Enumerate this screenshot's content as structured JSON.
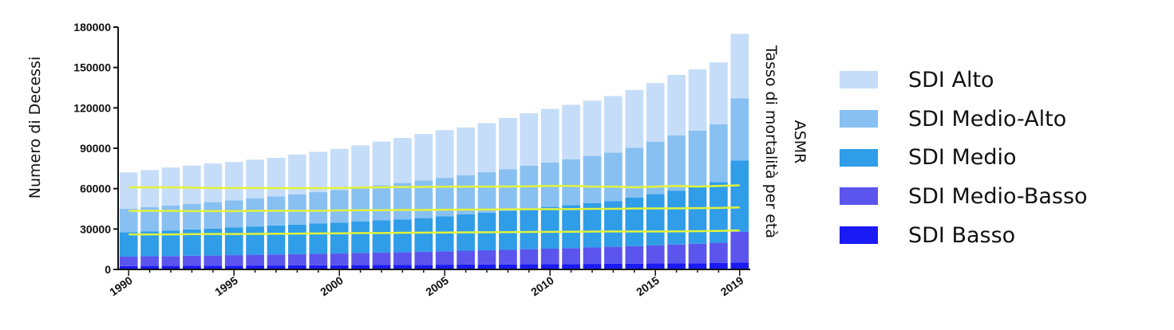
{
  "chart_data": {
    "type": "bar",
    "stacked": true,
    "ylabel": "Numero di Decessi",
    "ylabel_right": "Tasso di mortalità per età",
    "ylabel_right_sub": "ASMR",
    "ylim": [
      0,
      180000
    ],
    "yticks": [
      "0",
      "30000",
      "60000",
      "90000",
      "120000",
      "150000",
      "180000"
    ],
    "ytick_values": [
      0,
      30000,
      60000,
      90000,
      120000,
      150000,
      180000
    ],
    "xticks": [
      "1990",
      "1995",
      "2000",
      "2005",
      "2010",
      "2015",
      "2019"
    ],
    "xtick_values": [
      1990,
      1995,
      2000,
      2005,
      2010,
      2015,
      2019
    ],
    "x": [
      1990,
      1991,
      1992,
      1993,
      1994,
      1995,
      1996,
      1997,
      1998,
      1999,
      2000,
      2001,
      2002,
      2003,
      2004,
      2005,
      2006,
      2007,
      2008,
      2009,
      2010,
      2011,
      2012,
      2013,
      2014,
      2015,
      2016,
      2017,
      2018,
      2019
    ],
    "series": [
      {
        "name": "SDI Basso",
        "color": "#1a1af5",
        "values": [
          2500,
          2600,
          2600,
          2700,
          2700,
          2800,
          2900,
          2900,
          3000,
          3100,
          3100,
          3200,
          3300,
          3300,
          3400,
          3500,
          3600,
          3700,
          3700,
          3800,
          3900,
          4000,
          4100,
          4200,
          4300,
          4400,
          4500,
          4600,
          4800,
          5000
        ]
      },
      {
        "name": "SDI Medio-Basso",
        "color": "#5b55ee",
        "values": [
          7000,
          7200,
          7300,
          7500,
          7600,
          7800,
          8000,
          8200,
          8300,
          8500,
          8700,
          9000,
          9200,
          9400,
          9700,
          10000,
          10300,
          10500,
          10800,
          11200,
          11500,
          11800,
          12200,
          12600,
          13000,
          13500,
          14000,
          14500,
          15000,
          23000
        ]
      },
      {
        "name": "SDI Medio",
        "color": "#2f9de8",
        "values": [
          18000,
          18500,
          19000,
          19500,
          20000,
          20500,
          21000,
          21500,
          22000,
          22500,
          23000,
          23500,
          24000,
          24500,
          25000,
          26000,
          27000,
          28000,
          29000,
          30000,
          31000,
          32000,
          33000,
          34000,
          36000,
          38000,
          40000,
          42000,
          45000,
          53000
        ]
      },
      {
        "name": "SDI Medio-Alto",
        "color": "#88c0f2",
        "values": [
          17500,
          18000,
          18500,
          19000,
          19700,
          20300,
          21000,
          21700,
          22500,
          23300,
          24200,
          25000,
          26000,
          27000,
          28000,
          28500,
          29000,
          30000,
          31000,
          32000,
          33000,
          34000,
          35000,
          36000,
          37000,
          39000,
          41000,
          42000,
          43000,
          46000
        ]
      },
      {
        "name": "SDI Alto",
        "color": "#c5ddf8",
        "values": [
          27000,
          27500,
          28300,
          28500,
          28700,
          28400,
          28600,
          28600,
          29500,
          30000,
          30500,
          31500,
          32500,
          33500,
          34500,
          35500,
          35500,
          36500,
          38000,
          39000,
          39800,
          40500,
          41000,
          42000,
          43000,
          43500,
          45000,
          45500,
          46000,
          48000
        ]
      }
    ],
    "asmr_lines": [
      {
        "color": "#e2f23a",
        "values": [
          61000,
          61000,
          61000,
          60800,
          60500,
          60500,
          60500,
          60300,
          60300,
          60300,
          60500,
          60800,
          61000,
          61200,
          61300,
          61400,
          61500,
          61500,
          61600,
          61700,
          62000,
          62000,
          61500,
          61500,
          61000,
          61500,
          62000,
          61500,
          62000,
          62500
        ]
      },
      {
        "color": "#e2f23a",
        "values": [
          43500,
          43500,
          43500,
          43300,
          43300,
          43300,
          43500,
          43500,
          43500,
          43500,
          43800,
          44000,
          44000,
          44200,
          44200,
          44300,
          44400,
          44500,
          44600,
          44700,
          44800,
          44800,
          45000,
          45000,
          45200,
          45300,
          45400,
          45500,
          45700,
          46000
        ]
      },
      {
        "color": "#e2f23a",
        "values": [
          26000,
          26000,
          26000,
          26200,
          26300,
          26300,
          26400,
          26500,
          26600,
          26700,
          26800,
          27000,
          27000,
          27200,
          27300,
          27400,
          27500,
          27600,
          27700,
          27800,
          27900,
          28000,
          28100,
          28200,
          28200,
          28200,
          28300,
          28400,
          28600,
          29000
        ]
      }
    ],
    "legend_order": [
      "SDI Alto",
      "SDI Medio-Alto",
      "SDI Medio",
      "SDI Medio-Basso",
      "SDI Basso"
    ],
    "legend_position": "right",
    "grid": false
  }
}
